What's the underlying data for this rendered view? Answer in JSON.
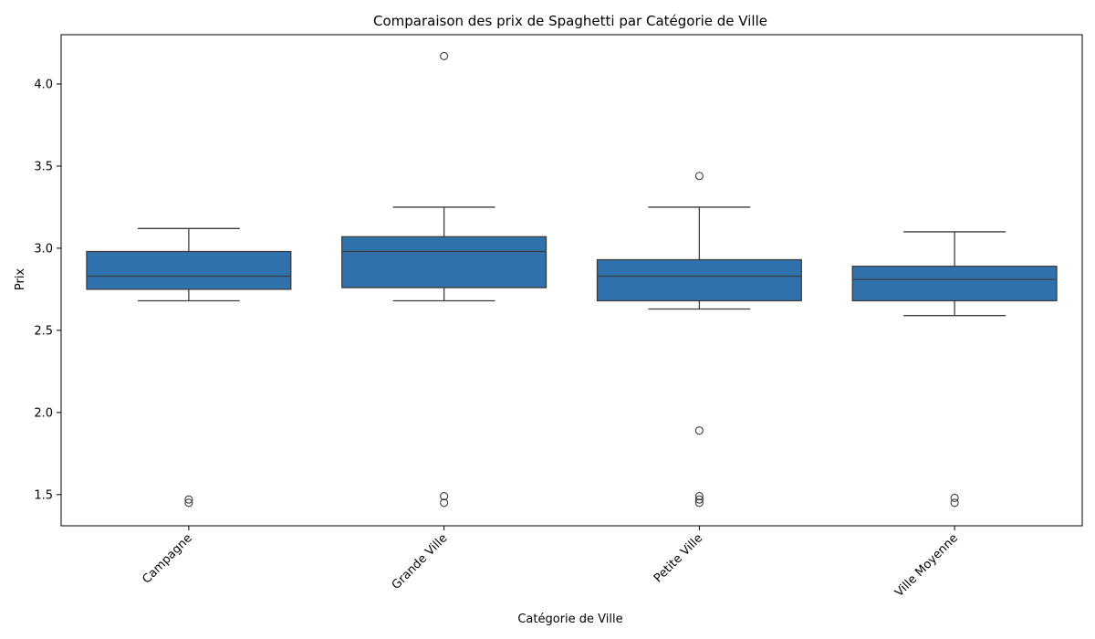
{
  "chart_data": {
    "type": "box",
    "title": "Comparaison des prix de Spaghetti par Catégorie de Ville",
    "xlabel": "Catégorie de Ville",
    "ylabel": "Prix",
    "ylim": [
      1.31,
      4.3
    ],
    "yticks": [
      1.5,
      2.0,
      2.5,
      3.0,
      3.5,
      4.0
    ],
    "ytick_labels": [
      "1.5",
      "2.0",
      "2.5",
      "3.0",
      "3.5",
      "4.0"
    ],
    "grid": false,
    "legend": "none",
    "colors": {
      "box": "#2f72ad",
      "line": "#3d3d3d"
    },
    "categories": [
      "Campagne",
      "Grande Ville",
      "Petite Ville",
      "Ville Moyenne"
    ],
    "boxes": [
      {
        "category": "Campagne",
        "whisker_low": 2.68,
        "q1": 2.75,
        "median": 2.83,
        "q3": 2.98,
        "whisker_high": 3.12,
        "outliers": [
          1.47,
          1.45
        ]
      },
      {
        "category": "Grande Ville",
        "whisker_low": 2.68,
        "q1": 2.76,
        "median": 2.98,
        "q3": 3.07,
        "whisker_high": 3.25,
        "outliers": [
          4.17,
          1.49,
          1.45
        ]
      },
      {
        "category": "Petite Ville",
        "whisker_low": 2.63,
        "q1": 2.68,
        "median": 2.83,
        "q3": 2.93,
        "whisker_high": 3.25,
        "outliers": [
          3.44,
          1.89,
          1.49,
          1.47,
          1.45
        ]
      },
      {
        "category": "Ville Moyenne",
        "whisker_low": 2.59,
        "q1": 2.68,
        "median": 2.81,
        "q3": 2.89,
        "whisker_high": 3.1,
        "outliers": [
          1.48,
          1.45
        ]
      }
    ]
  }
}
